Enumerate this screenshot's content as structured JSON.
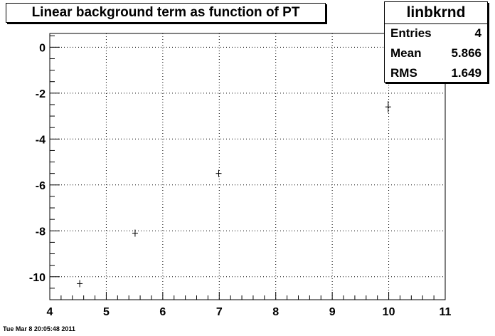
{
  "chart_data": {
    "type": "scatter",
    "title": "Linear background term as function of PT",
    "xlabel": "",
    "ylabel": "",
    "xlim": [
      4,
      11
    ],
    "ylim": [
      -11,
      0.6
    ],
    "x_ticks": [
      "4",
      "5",
      "6",
      "7",
      "8",
      "9",
      "10",
      "11"
    ],
    "y_ticks": [
      "0",
      "-2",
      "-4",
      "-6",
      "-8",
      "-10"
    ],
    "grid": true,
    "points": [
      {
        "x": 4.53,
        "y": -10.3,
        "err": 0.15
      },
      {
        "x": 5.51,
        "y": -8.1,
        "err": 0.15
      },
      {
        "x": 6.99,
        "y": -5.5,
        "err": 0.15
      },
      {
        "x": 9.99,
        "y": -2.6,
        "err": 0.25
      }
    ]
  },
  "stats": {
    "name": "linbkrnd",
    "rows": [
      {
        "label": "Entries",
        "value": "4"
      },
      {
        "label": "Mean",
        "value": "5.866"
      },
      {
        "label": "RMS",
        "value": "1.649"
      }
    ]
  },
  "timestamp": "Tue Mar  8 20:05:48 2011"
}
